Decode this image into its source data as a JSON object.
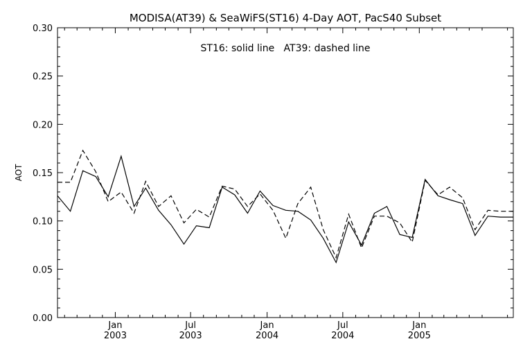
{
  "chart_data": {
    "type": "line",
    "title": "MODISA(AT39) & SeaWiFS(ST16) 4-Day AOT, PacS40 Subset",
    "annotation": "ST16: solid line   AT39: dashed line",
    "ylabel": "AOT",
    "xlabel": "",
    "ylim": [
      0,
      0.3
    ],
    "xlim": [
      "2002-08-15",
      "2005-08-15"
    ],
    "yticks": [
      "0.00",
      "0.05",
      "0.10",
      "0.15",
      "0.20",
      "0.25",
      "0.30"
    ],
    "xticks": [
      {
        "date": "2003-01-01",
        "month": "Jan",
        "year": "2003"
      },
      {
        "date": "2003-07-01",
        "month": "Jul",
        "year": "2003"
      },
      {
        "date": "2004-01-01",
        "month": "Jan",
        "year": "2004"
      },
      {
        "date": "2004-07-01",
        "month": "Jul",
        "year": "2004"
      },
      {
        "date": "2005-01-01",
        "month": "Jan",
        "year": "2005"
      }
    ],
    "grid": false,
    "series": [
      {
        "name": "ST16",
        "style": "solid",
        "color": "#000000",
        "x": [
          "2002-08-15",
          "2002-09-15",
          "2002-10-15",
          "2002-11-15",
          "2002-12-15",
          "2003-01-15",
          "2003-02-15",
          "2003-03-15",
          "2003-04-15",
          "2003-05-15",
          "2003-06-15",
          "2003-07-15",
          "2003-08-15",
          "2003-09-15",
          "2003-10-15",
          "2003-11-15",
          "2003-12-15",
          "2004-01-15",
          "2004-02-15",
          "2004-03-15",
          "2004-04-15",
          "2004-05-15",
          "2004-06-15",
          "2004-07-15",
          "2004-08-15",
          "2004-09-15",
          "2004-10-15",
          "2004-11-15",
          "2004-12-15",
          "2005-01-15",
          "2005-02-15",
          "2005-03-15",
          "2005-04-15",
          "2005-05-15",
          "2005-06-15",
          "2005-07-15",
          "2005-08-15"
        ],
        "y": [
          0.126,
          0.11,
          0.152,
          0.146,
          0.125,
          0.167,
          0.115,
          0.134,
          0.111,
          0.096,
          0.076,
          0.095,
          0.093,
          0.135,
          0.127,
          0.108,
          0.131,
          0.116,
          0.111,
          0.11,
          0.101,
          0.082,
          0.057,
          0.099,
          0.075,
          0.108,
          0.115,
          0.086,
          0.083,
          0.143,
          0.126,
          0.122,
          0.118,
          0.085,
          0.105,
          0.104,
          0.104
        ]
      },
      {
        "name": "AT39",
        "style": "dashed",
        "color": "#000000",
        "x": [
          "2002-08-15",
          "2002-09-15",
          "2002-10-15",
          "2002-11-15",
          "2002-12-15",
          "2003-01-15",
          "2003-02-15",
          "2003-03-15",
          "2003-04-15",
          "2003-05-15",
          "2003-06-15",
          "2003-07-15",
          "2003-08-15",
          "2003-09-15",
          "2003-10-15",
          "2003-11-15",
          "2003-12-15",
          "2004-01-15",
          "2004-02-15",
          "2004-03-15",
          "2004-04-15",
          "2004-05-15",
          "2004-06-15",
          "2004-07-15",
          "2004-08-15",
          "2004-09-15",
          "2004-10-15",
          "2004-11-15",
          "2004-12-15",
          "2005-01-15",
          "2005-02-15",
          "2005-03-15",
          "2005-04-15",
          "2005-05-15",
          "2005-06-15",
          "2005-07-15",
          "2005-08-15"
        ],
        "y": [
          0.14,
          0.14,
          0.173,
          0.151,
          0.12,
          0.13,
          0.108,
          0.141,
          0.115,
          0.126,
          0.098,
          0.112,
          0.104,
          0.136,
          0.133,
          0.115,
          0.128,
          0.111,
          0.082,
          0.118,
          0.135,
          0.091,
          0.062,
          0.107,
          0.072,
          0.105,
          0.105,
          0.098,
          0.078,
          0.142,
          0.127,
          0.135,
          0.124,
          0.091,
          0.111,
          0.11,
          0.11
        ]
      }
    ]
  }
}
